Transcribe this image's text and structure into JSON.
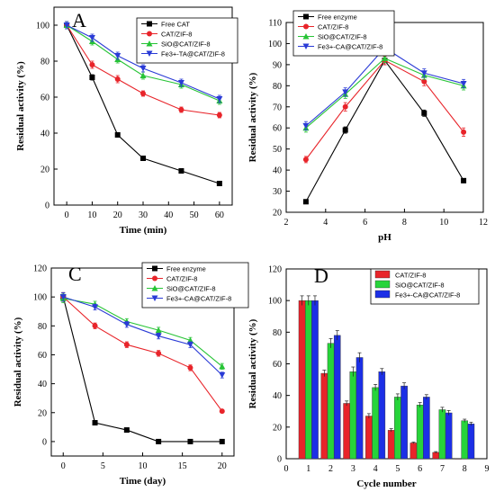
{
  "chart_data": [
    {
      "panel": "A",
      "type": "line",
      "xlabel": "Time (min)",
      "ylabel": "Residual activity (%)",
      "xlim": [
        -5,
        65
      ],
      "ylim": [
        0,
        110
      ],
      "xticks": [
        0,
        10,
        20,
        30,
        40,
        50,
        60
      ],
      "yticks": [
        0,
        20,
        40,
        60,
        80,
        100
      ],
      "legend": "top-right",
      "grid": false,
      "x": [
        0,
        10,
        20,
        30,
        45,
        60
      ],
      "series": [
        {
          "name": "Free CAT",
          "color": "#000000",
          "marker": "square",
          "values": [
            100,
            71,
            39,
            26,
            19,
            12
          ],
          "err": [
            2,
            1.5,
            1,
            1,
            1,
            1
          ]
        },
        {
          "name": "CAT/ZIF-8",
          "color": "#e8242a",
          "marker": "circle",
          "values": [
            100,
            78,
            70,
            62,
            53,
            50
          ],
          "err": [
            2,
            2,
            2,
            1.5,
            1.5,
            1.5
          ]
        },
        {
          "name": "SiO@CAT/ZIF-8",
          "color": "#27c436",
          "marker": "triangle-up",
          "values": [
            100,
            91,
            81,
            72,
            67,
            58
          ],
          "err": [
            2,
            2,
            2,
            2,
            2,
            2
          ]
        },
        {
          "name": "Fe3+-TA@CAT/ZIF-8",
          "color": "#2a3bd6",
          "marker": "triangle-down",
          "values": [
            100,
            93,
            83,
            76,
            68,
            59
          ],
          "err": [
            2,
            2,
            2,
            2,
            2,
            2
          ]
        }
      ]
    },
    {
      "panel": "B",
      "type": "line",
      "xlabel": "pH",
      "ylabel": "Residual activity (%)",
      "xlim": [
        2,
        12
      ],
      "ylim": [
        20,
        110
      ],
      "xticks": [
        2,
        4,
        6,
        8,
        10,
        12
      ],
      "yticks": [
        20,
        30,
        40,
        50,
        60,
        70,
        80,
        90,
        100,
        110
      ],
      "legend": "top-left",
      "grid": false,
      "x": [
        3,
        5,
        7,
        9,
        11
      ],
      "series": [
        {
          "name": "Free enzyme",
          "color": "#000000",
          "marker": "square",
          "values": [
            25,
            59,
            92,
            67,
            35
          ],
          "err": [
            1,
            1.5,
            2,
            1.5,
            1
          ]
        },
        {
          "name": "CAT/ZIF-8",
          "color": "#e8242a",
          "marker": "circle",
          "values": [
            45,
            70,
            92,
            82,
            58
          ],
          "err": [
            1.5,
            2,
            2,
            2,
            2
          ]
        },
        {
          "name": "SiO@CAT/ZIF-8",
          "color": "#27c436",
          "marker": "triangle-up",
          "values": [
            60,
            76,
            93,
            85,
            80
          ],
          "err": [
            2,
            2,
            2,
            2,
            2
          ]
        },
        {
          "name": "Fe3+-CA@CAT/ZIF-8",
          "color": "#2a3bd6",
          "marker": "triangle-down",
          "values": [
            61,
            77,
            98,
            86,
            81
          ],
          "err": [
            2,
            2,
            2,
            2,
            2
          ]
        }
      ]
    },
    {
      "panel": "C",
      "type": "line",
      "xlabel": "Time (day)",
      "ylabel": "Residual activity (%)",
      "xlim": [
        -1.5,
        21.5
      ],
      "ylim": [
        -10,
        120
      ],
      "xticks": [
        0,
        5,
        10,
        15,
        20
      ],
      "yticks": [
        0,
        20,
        40,
        60,
        80,
        100,
        120
      ],
      "legend": "top-right",
      "grid": false,
      "x": [
        0,
        4,
        8,
        12,
        16,
        20
      ],
      "series": [
        {
          "name": "Free enzyme",
          "color": "#000000",
          "marker": "square",
          "values": [
            100,
            13,
            8,
            0,
            0,
            0
          ],
          "err": [
            3,
            1,
            1,
            0.5,
            0.5,
            0.5
          ]
        },
        {
          "name": "CAT/ZIF-8",
          "color": "#e8242a",
          "marker": "circle",
          "values": [
            100,
            80,
            67,
            61,
            51,
            21
          ],
          "err": [
            3,
            2,
            2,
            2,
            2,
            1
          ]
        },
        {
          "name": "SiO@CAT/ZIF-8",
          "color": "#27c436",
          "marker": "triangle-up",
          "values": [
            99,
            95,
            83,
            77,
            70,
            52
          ],
          "err": [
            3,
            2,
            2,
            2,
            2,
            2
          ]
        },
        {
          "name": "Fe3+-CA@CAT/ZIF-8",
          "color": "#2a3bd6",
          "marker": "triangle-down",
          "values": [
            100,
            93,
            81,
            73,
            67,
            46
          ],
          "err": [
            3,
            2,
            2,
            2,
            2,
            2
          ]
        }
      ]
    },
    {
      "panel": "D",
      "type": "bar",
      "xlabel": "Cycle number",
      "ylabel": "Residual activity (%)",
      "xlim": [
        0,
        9
      ],
      "ylim": [
        0,
        120
      ],
      "xticks": [
        0,
        1,
        2,
        3,
        4,
        5,
        6,
        7,
        8,
        9
      ],
      "yticks": [
        0,
        20,
        40,
        60,
        80,
        100,
        120
      ],
      "legend": "top-right",
      "grid": false,
      "categories": [
        1,
        2,
        3,
        4,
        5,
        6,
        7,
        8
      ],
      "series": [
        {
          "name": "CAT/ZIF-8",
          "color": "#e8242a",
          "values": [
            100,
            54,
            35,
            27,
            18,
            10,
            4,
            0
          ],
          "err": [
            3,
            2,
            1.5,
            1.5,
            1,
            0.5,
            0.5,
            0
          ]
        },
        {
          "name": "SiO@CAT/ZIF-8",
          "color": "#27d43a",
          "values": [
            100,
            73,
            55,
            45,
            39,
            34,
            31,
            24
          ],
          "err": [
            3,
            3,
            3,
            2,
            2,
            1.5,
            1.5,
            1
          ]
        },
        {
          "name": "Fe3+-CA@CAT/ZIF-8",
          "color": "#1c2fe6",
          "values": [
            100,
            78,
            64,
            55,
            46,
            39,
            29,
            22
          ],
          "err": [
            3,
            3,
            3,
            2,
            2,
            1.5,
            1.5,
            1
          ]
        }
      ]
    }
  ]
}
